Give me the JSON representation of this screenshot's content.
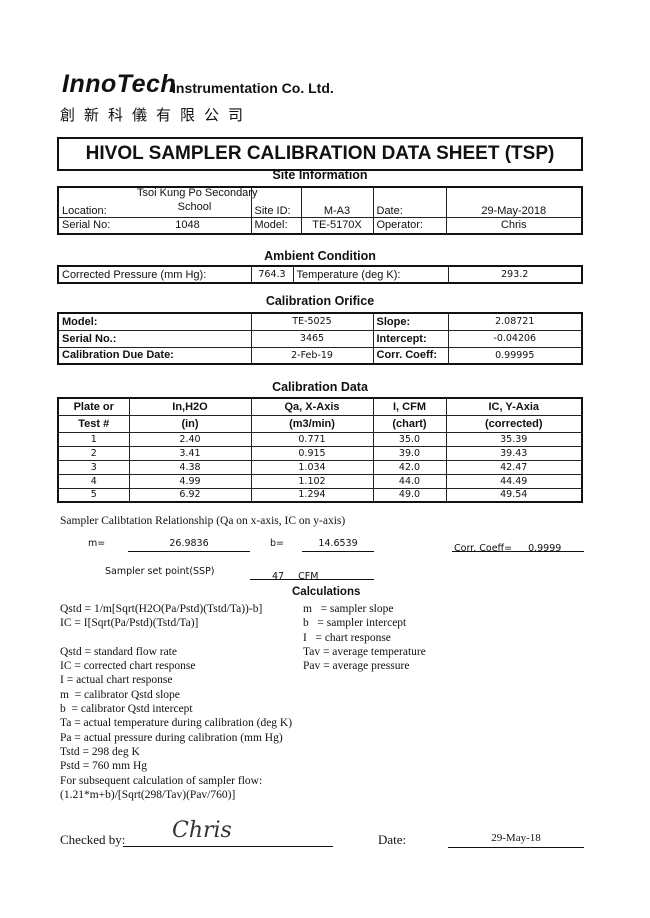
{
  "header": {
    "brand": "InnoTech",
    "company": "Instrumentation Co. Ltd.",
    "chinese": "創新科儀有限公司",
    "title": "HIVOL SAMPLER CALIBRATION  DATA SHEET (TSP)"
  },
  "site": {
    "heading": "Site Information",
    "location_label": "Location:",
    "location_line1": "Tsoi Kung Po Secondary",
    "location_line2": "School",
    "site_id_label": "Site ID:",
    "site_id": "M-A3",
    "date_label": "Date:",
    "date": "29-May-2018",
    "serial_label": "Serial No:",
    "serial": "1048",
    "model_label": "Model:",
    "model": "TE-5170X",
    "operator_label": "Operator:",
    "operator": "Chris"
  },
  "ambient": {
    "heading": "Ambient Condition",
    "pressure_label": "Corrected Pressure (mm Hg):",
    "pressure": "764.3",
    "temp_label": "Temperature (deg K):",
    "temp": "293.2"
  },
  "orifice": {
    "heading": "Calibration Orifice",
    "model_label": "Model:",
    "model": "TE-5025",
    "slope_label": "Slope:",
    "slope": "2.08721",
    "serial_label": "Serial No.:",
    "serial": "3465",
    "intercept_label": "Intercept:",
    "intercept": "-0.04206",
    "due_label": "Calibration Due Date:",
    "due": "2-Feb-19",
    "corr_label": "Corr. Coeff:",
    "corr": "0.99995"
  },
  "calibration": {
    "heading": "Calibration Data",
    "headers": [
      [
        "Plate or",
        "In,H2O",
        "Qa, X-Axis",
        "I, CFM",
        "IC, Y-Axia"
      ],
      [
        "Test #",
        "(in)",
        "(m3/min)",
        "(chart)",
        "(corrected)"
      ]
    ],
    "rows": [
      [
        "1",
        "2.40",
        "0.771",
        "35.0",
        "35.39"
      ],
      [
        "2",
        "3.41",
        "0.915",
        "39.0",
        "39.43"
      ],
      [
        "3",
        "4.38",
        "1.034",
        "42.0",
        "42.47"
      ],
      [
        "4",
        "4.99",
        "1.102",
        "44.0",
        "44.49"
      ],
      [
        "5",
        "6.92",
        "1.294",
        "49.0",
        "49.54"
      ]
    ]
  },
  "relationship": {
    "title": "Sampler Calibtation Relationship (Qa on x-axis, IC on y-axis)",
    "m_label": "m=",
    "m": "26.9836",
    "b_label": "b=",
    "b": "14.6539",
    "corr_label": "Corr. Coeff=",
    "corr": "0.9999",
    "ssp_label": "Sampler set point(SSP)",
    "ssp": "47",
    "ssp_unit": "CFM"
  },
  "calculations": {
    "heading": "Calculations",
    "left": [
      "Qstd = 1/m[Sqrt(H2O(Pa/Pstd)(Tstd/Ta))-b]",
      "IC = I[Sqrt(Pa/Pstd)(Tstd/Ta)]",
      "",
      "Qstd = standard flow rate",
      "IC = corrected chart response",
      "I = actual chart response",
      "m  = calibrator Qstd slope",
      "b  = calibrator Qstd intercept",
      "Ta = actual temperature during calibration (deg K)",
      "Pa = actual pressure during calibration (mm Hg)",
      "Tstd = 298 deg K",
      "Pstd = 760 mm Hg",
      "For subsequent calculation of sampler flow:",
      "(1.21*m+b)/[Sqrt(298/Tav)(Pav/760)]"
    ],
    "right": [
      "m   = sampler slope",
      "b   = sampler intercept",
      "I   = chart response",
      "Tav = average temperature",
      "Pav = average pressure"
    ]
  },
  "footer": {
    "checked_label": "Checked by:",
    "signature": "Chris",
    "date_label": "Date:",
    "date": "29-May-18"
  }
}
